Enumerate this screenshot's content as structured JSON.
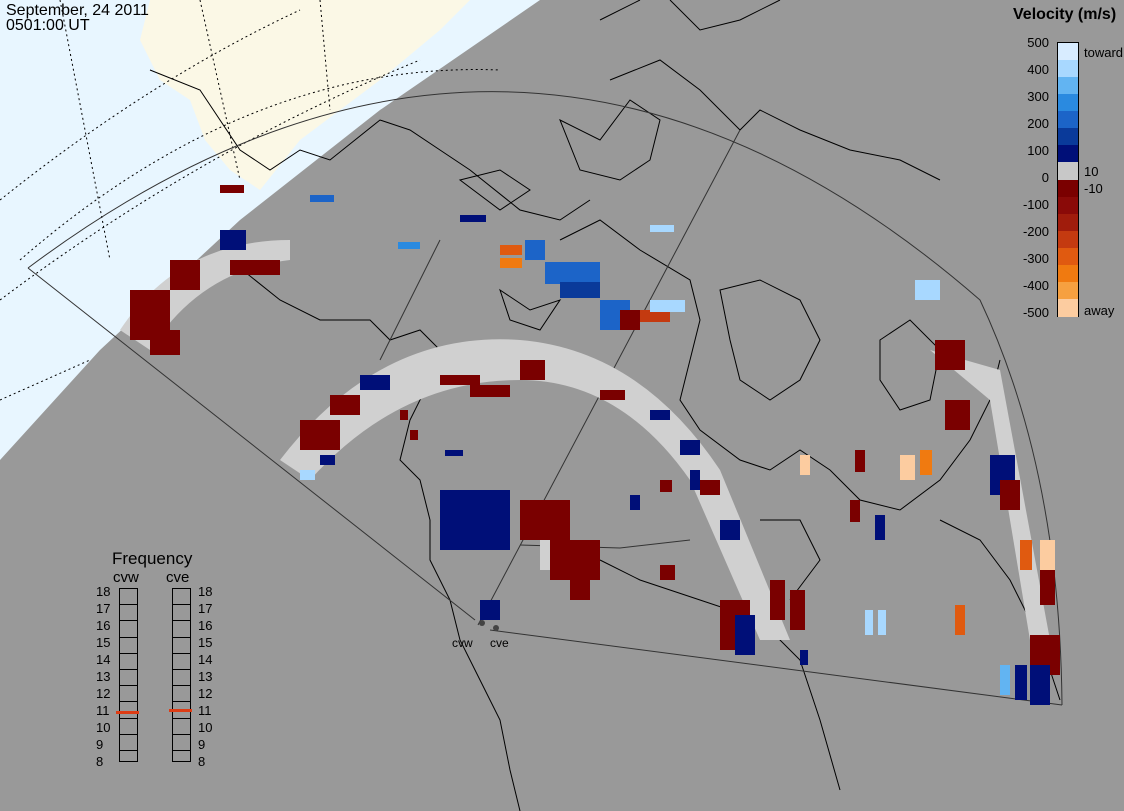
{
  "header": {
    "date": "September, 24 2011",
    "time": "0501:00 UT"
  },
  "velocity_legend": {
    "title": "Velocity (m/s)",
    "ticks_left": [
      "500",
      "400",
      "300",
      "200",
      "100",
      "0",
      "-100",
      "-200",
      "-300",
      "-400",
      "-500"
    ],
    "label_toward": "toward",
    "label_away": "away",
    "label_pos": "10",
    "label_neg": "-10",
    "colors": [
      "#d8ecff",
      "#a8d8ff",
      "#62b4f2",
      "#2a8ae0",
      "#1c64c8",
      "#0a3a9a",
      "#000f78",
      "#c8c8c8",
      "#7a0000",
      "#8a0a08",
      "#a01c0c",
      "#c43a10",
      "#e05a10",
      "#f07a10",
      "#f6a040",
      "#fccca0"
    ]
  },
  "frequency_legend": {
    "title": "Frequency",
    "radars": [
      "cvw",
      "cve"
    ],
    "scale": [
      "18",
      "17",
      "16",
      "15",
      "14",
      "13",
      "12",
      "11",
      "10",
      "9",
      "8"
    ],
    "selected": {
      "cvw": 10.8,
      "cve": 10.9
    }
  },
  "sites": {
    "cvw": "cvw",
    "cve": "cve"
  },
  "colors": {
    "background": "#999999",
    "daylight": "#e8f6ff",
    "land_day": "#fbf8e6",
    "ground_scatter": "#d0d0d0"
  }
}
